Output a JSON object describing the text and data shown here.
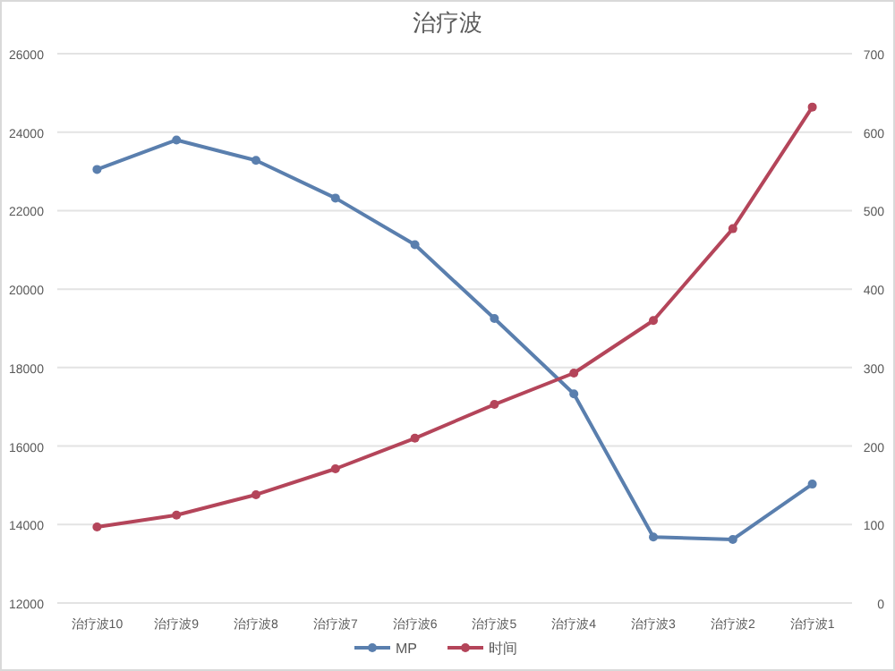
{
  "chart_data": {
    "type": "line",
    "title": "治疗波",
    "categories": [
      "治疗波10",
      "治疗波9",
      "治疗波8",
      "治疗波7",
      "治疗波6",
      "治疗波5",
      "治疗波4",
      "治疗波3",
      "治疗波2",
      "治疗波1"
    ],
    "series": [
      {
        "name": "MP",
        "color": "#5a7fae",
        "values": [
          23050,
          23800,
          23280,
          22320,
          21130,
          19250,
          17330,
          13680,
          13620,
          15030
        ]
      },
      {
        "name": "时间",
        "color": "#b4455a",
        "axis": "y2",
        "values": [
          97,
          112,
          138,
          171,
          210,
          253,
          293,
          360,
          477,
          632
        ]
      }
    ],
    "ylim": [
      12000,
      26000
    ],
    "yticks": [
      12000,
      14000,
      16000,
      18000,
      20000,
      22000,
      24000,
      26000
    ],
    "y2lim": [
      0,
      700
    ],
    "y2ticks": [
      0,
      100,
      200,
      300,
      400,
      500,
      600,
      700
    ],
    "grid": "y",
    "legend": "bottom",
    "marker": "circle",
    "line_style": "solid"
  }
}
